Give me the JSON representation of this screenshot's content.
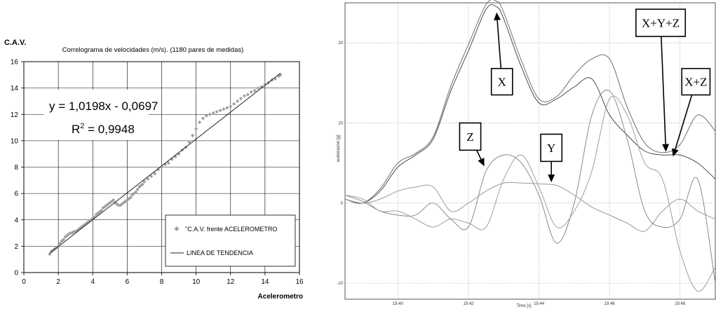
{
  "chart_data": [
    {
      "type": "scatter",
      "y_corner_label": "C.A.V.",
      "title": "Correlograma de velocidades (m/s).  (1180 pares de medidas)",
      "xlabel": "Acelerometro",
      "ylabel": "",
      "xlim": [
        0,
        16
      ],
      "ylim": [
        0,
        16
      ],
      "x_ticks": [
        "0",
        "2",
        "4",
        "6",
        "8",
        "10",
        "12",
        "14",
        "16"
      ],
      "y_ticks": [
        "0",
        "2",
        "4",
        "6",
        "8",
        "10",
        "12",
        "14",
        "16"
      ],
      "grid": true,
      "equation": "y = 1,0198x - 0,0697",
      "r2_prefix": "R",
      "r2_exp": "2",
      "r2_value": " = 0,9948",
      "trend": {
        "slope": 1.0198,
        "intercept": -0.0697,
        "x_range": [
          1.5,
          14.9
        ]
      },
      "legend": [
        {
          "label": "\"C.A.V. frente ACELEROMETRO",
          "marker": "diamond"
        },
        {
          "label": "LINEA DE TENDENCIA",
          "marker": "line"
        }
      ],
      "legend_position": "bottom-right",
      "point_color": "#a0a0a0",
      "series": [
        {
          "name": "\"C.A.V. frente ACELEROMETRO",
          "x": [
            1.5,
            1.6,
            1.7,
            1.8,
            1.9,
            2.0,
            2.1,
            2.2,
            2.3,
            2.4,
            2.5,
            2.6,
            2.7,
            2.8,
            2.9,
            3.0,
            3.1,
            3.2,
            3.3,
            3.4,
            3.5,
            3.6,
            3.7,
            3.8,
            3.9,
            4.0,
            4.1,
            4.2,
            4.3,
            4.4,
            4.5,
            4.6,
            4.7,
            4.8,
            4.9,
            5.0,
            5.1,
            5.2,
            5.3,
            5.4,
            5.5,
            5.6,
            5.7,
            5.8,
            5.9,
            6.0,
            6.1,
            6.2,
            6.3,
            6.4,
            6.5,
            6.6,
            6.7,
            6.8,
            6.9,
            7.0,
            7.2,
            7.4,
            7.6,
            7.8,
            8.0,
            8.2,
            8.4,
            8.6,
            8.8,
            9.0,
            9.2,
            9.4,
            9.6,
            9.8,
            10.0,
            10.2,
            10.4,
            10.6,
            10.8,
            11.0,
            11.2,
            11.4,
            11.6,
            11.8,
            12.0,
            12.2,
            12.4,
            12.6,
            12.8,
            13.0,
            13.2,
            13.4,
            13.6,
            13.8,
            14.0,
            14.2,
            14.4,
            14.6,
            14.8,
            14.9
          ],
          "y": [
            1.4,
            1.6,
            1.7,
            1.8,
            1.9,
            2.0,
            2.2,
            2.4,
            2.5,
            2.7,
            2.8,
            2.9,
            3.0,
            3.0,
            3.1,
            3.1,
            3.2,
            3.3,
            3.4,
            3.5,
            3.6,
            3.7,
            3.8,
            3.9,
            4.0,
            4.1,
            4.2,
            4.4,
            4.5,
            4.6,
            4.7,
            4.9,
            5.0,
            5.1,
            5.2,
            5.3,
            5.4,
            5.5,
            5.3,
            5.2,
            5.1,
            5.1,
            5.2,
            5.3,
            5.4,
            5.5,
            5.6,
            5.7,
            5.9,
            6.0,
            6.1,
            6.3,
            6.5,
            6.6,
            6.7,
            6.9,
            7.1,
            7.3,
            7.5,
            7.8,
            8.0,
            8.2,
            8.3,
            8.6,
            8.8,
            9.0,
            9.3,
            9.5,
            9.9,
            10.4,
            10.9,
            11.4,
            11.7,
            11.9,
            12.0,
            12.1,
            12.2,
            12.3,
            12.4,
            12.5,
            12.6,
            12.8,
            13.0,
            13.2,
            13.4,
            13.5,
            13.7,
            13.8,
            14.0,
            14.1,
            14.3,
            14.4,
            14.6,
            14.7,
            14.9,
            15.0
          ]
        }
      ]
    },
    {
      "type": "line",
      "ylabel": "aceleracion [g]",
      "xlabel": "Time [s]",
      "xlim": [
        19.385,
        19.49
      ],
      "ylim": [
        -12,
        25
      ],
      "x_ticks": [
        "19.40",
        "19.42",
        "19.44",
        "19.46",
        "19.48"
      ],
      "y_ticks": [
        "20",
        "10",
        "0",
        "-10"
      ],
      "grid": true,
      "line_colors": [
        "#4a4a4a",
        "#6e6e6e",
        "#9a9a9a",
        "#8a8a8a",
        "#9e9e9e"
      ],
      "callouts": [
        {
          "label": "X",
          "box": [
            19.4265,
            19.4325,
            16.8,
            13.5
          ],
          "tip": [
            19.428,
            23.8
          ]
        },
        {
          "label": "X+Y+Z",
          "box": [
            19.4675,
            19.4815,
            24.2,
            20.8
          ],
          "tip": [
            19.476,
            6.4
          ]
        },
        {
          "label": "X+Z",
          "box": [
            19.4805,
            19.4885,
            16.8,
            13.5
          ],
          "tip": [
            19.478,
            5.8
          ]
        },
        {
          "label": "Z",
          "box": [
            19.4175,
            19.4235,
            10.0,
            6.6
          ],
          "tip": [
            19.4245,
            4.6
          ]
        },
        {
          "label": "Y",
          "box": [
            19.4405,
            19.4465,
            8.6,
            5.2
          ],
          "tip": [
            19.4435,
            2.6
          ]
        }
      ],
      "series": [
        {
          "x": [
            19.385,
            19.39,
            19.395,
            19.4,
            19.405,
            19.41,
            19.415,
            19.42,
            19.425,
            19.428,
            19.43,
            19.435,
            19.44,
            19.445,
            19.45,
            19.455,
            19.46,
            19.465,
            19.47,
            19.475,
            19.48,
            19.485,
            19.49
          ],
          "y": [
            0.5,
            0,
            1.5,
            4.5,
            6,
            8,
            14,
            19,
            24.2,
            24.5,
            23,
            17,
            12.5,
            13,
            14.5,
            15.5,
            11,
            8.5,
            6.5,
            6,
            6,
            5,
            3
          ]
        },
        {
          "x": [
            19.385,
            19.39,
            19.395,
            19.4,
            19.405,
            19.41,
            19.415,
            19.42,
            19.425,
            19.428,
            19.43,
            19.435,
            19.44,
            19.445,
            19.45,
            19.455,
            19.46,
            19.465,
            19.47,
            19.475,
            19.48,
            19.485,
            19.49
          ],
          "y": [
            0.5,
            0,
            1.8,
            5,
            6.2,
            8.3,
            14.6,
            19.8,
            24.8,
            25.2,
            23.8,
            17.8,
            13,
            13.3,
            16,
            18,
            18,
            12,
            7.5,
            6.3,
            7.3,
            11,
            9
          ]
        },
        {
          "x": [
            19.385,
            19.39,
            19.395,
            19.4,
            19.405,
            19.41,
            19.415,
            19.42,
            19.425,
            19.43,
            19.435,
            19.44,
            19.445,
            19.45,
            19.455,
            19.46,
            19.465,
            19.47,
            19.475,
            19.48,
            19.485,
            19.49
          ],
          "y": [
            0.5,
            0,
            0.5,
            1.5,
            2,
            2,
            -1,
            0,
            1.5,
            2.5,
            2.5,
            2.4,
            2.2,
            1,
            -0.5,
            -1.5,
            -2.5,
            -3.5,
            -1,
            0.5,
            -1,
            -2
          ]
        },
        {
          "x": [
            19.385,
            19.39,
            19.395,
            19.4,
            19.405,
            19.41,
            19.415,
            19.42,
            19.425,
            19.43,
            19.435,
            19.44,
            19.445,
            19.45,
            19.455,
            19.46,
            19.465,
            19.47,
            19.475,
            19.48,
            19.485,
            19.49
          ],
          "y": [
            1,
            0.2,
            -1,
            -1.5,
            -1.5,
            0,
            -2,
            -3,
            4,
            6,
            5,
            1,
            -5,
            0,
            11,
            14,
            8,
            -1,
            -3,
            -2,
            3,
            -10
          ]
        },
        {
          "x": [
            19.385,
            19.39,
            19.395,
            19.4,
            19.405,
            19.41,
            19.415,
            19.42,
            19.425,
            19.43,
            19.435,
            19.44,
            19.445,
            19.45,
            19.455,
            19.46,
            19.465,
            19.47,
            19.475,
            19.48,
            19.485,
            19.49
          ],
          "y": [
            1,
            0.5,
            -1,
            -1,
            -2,
            -3,
            -2,
            -2.5,
            -3,
            3,
            6,
            2,
            -3,
            -1,
            4,
            13,
            11,
            5,
            3,
            -6,
            -11,
            -8
          ]
        }
      ]
    }
  ]
}
